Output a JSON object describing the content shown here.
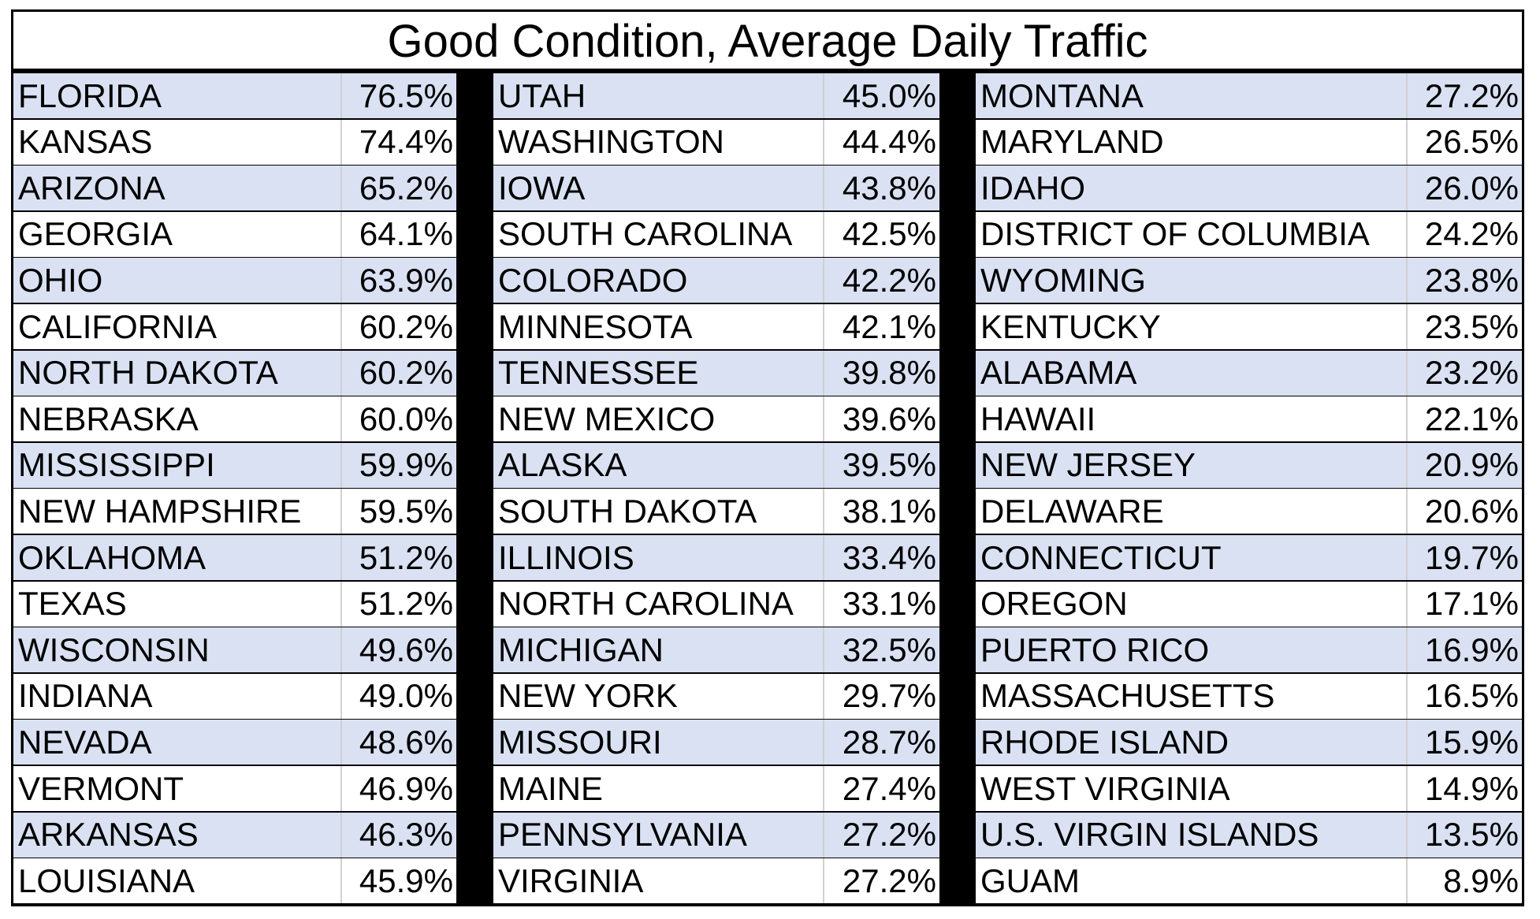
{
  "title": "Good Condition, Average Daily Traffic",
  "columns": [
    [
      [
        "FLORIDA",
        "76.5%"
      ],
      [
        "KANSAS",
        "74.4%"
      ],
      [
        "ARIZONA",
        "65.2%"
      ],
      [
        "GEORGIA",
        "64.1%"
      ],
      [
        "OHIO",
        "63.9%"
      ],
      [
        "CALIFORNIA",
        "60.2%"
      ],
      [
        "NORTH DAKOTA",
        "60.2%"
      ],
      [
        "NEBRASKA",
        "60.0%"
      ],
      [
        "MISSISSIPPI",
        "59.9%"
      ],
      [
        "NEW HAMPSHIRE",
        "59.5%"
      ],
      [
        "OKLAHOMA",
        "51.2%"
      ],
      [
        "TEXAS",
        "51.2%"
      ],
      [
        "WISCONSIN",
        "49.6%"
      ],
      [
        "INDIANA",
        "49.0%"
      ],
      [
        "NEVADA",
        "48.6%"
      ],
      [
        "VERMONT",
        "46.9%"
      ],
      [
        "ARKANSAS",
        "46.3%"
      ],
      [
        "LOUISIANA",
        "45.9%"
      ]
    ],
    [
      [
        "UTAH",
        "45.0%"
      ],
      [
        "WASHINGTON",
        "44.4%"
      ],
      [
        "IOWA",
        "43.8%"
      ],
      [
        "SOUTH CAROLINA",
        "42.5%"
      ],
      [
        "COLORADO",
        "42.2%"
      ],
      [
        "MINNESOTA",
        "42.1%"
      ],
      [
        "TENNESSEE",
        "39.8%"
      ],
      [
        "NEW MEXICO",
        "39.6%"
      ],
      [
        "ALASKA",
        "39.5%"
      ],
      [
        "SOUTH DAKOTA",
        "38.1%"
      ],
      [
        "ILLINOIS",
        "33.4%"
      ],
      [
        "NORTH CAROLINA",
        "33.1%"
      ],
      [
        "MICHIGAN",
        "32.5%"
      ],
      [
        "NEW YORK",
        "29.7%"
      ],
      [
        "MISSOURI",
        "28.7%"
      ],
      [
        "MAINE",
        "27.4%"
      ],
      [
        "PENNSYLVANIA",
        "27.2%"
      ],
      [
        "VIRGINIA",
        "27.2%"
      ]
    ],
    [
      [
        "MONTANA",
        "27.2%"
      ],
      [
        "MARYLAND",
        "26.5%"
      ],
      [
        "IDAHO",
        "26.0%"
      ],
      [
        "DISTRICT OF COLUMBIA",
        "24.2%"
      ],
      [
        "WYOMING",
        "23.8%"
      ],
      [
        "KENTUCKY",
        "23.5%"
      ],
      [
        "ALABAMA",
        "23.2%"
      ],
      [
        "HAWAII",
        "22.1%"
      ],
      [
        "NEW JERSEY",
        "20.9%"
      ],
      [
        "DELAWARE",
        "20.6%"
      ],
      [
        "CONNECTICUT",
        "19.7%"
      ],
      [
        "OREGON",
        "17.1%"
      ],
      [
        "PUERTO RICO",
        "16.9%"
      ],
      [
        "MASSACHUSETTS",
        "16.5%"
      ],
      [
        "RHODE ISLAND",
        "15.9%"
      ],
      [
        "WEST VIRGINIA",
        "14.9%"
      ],
      [
        "U.S. VIRGIN ISLANDS",
        "13.5%"
      ],
      [
        "GUAM",
        "8.9%"
      ]
    ]
  ]
}
